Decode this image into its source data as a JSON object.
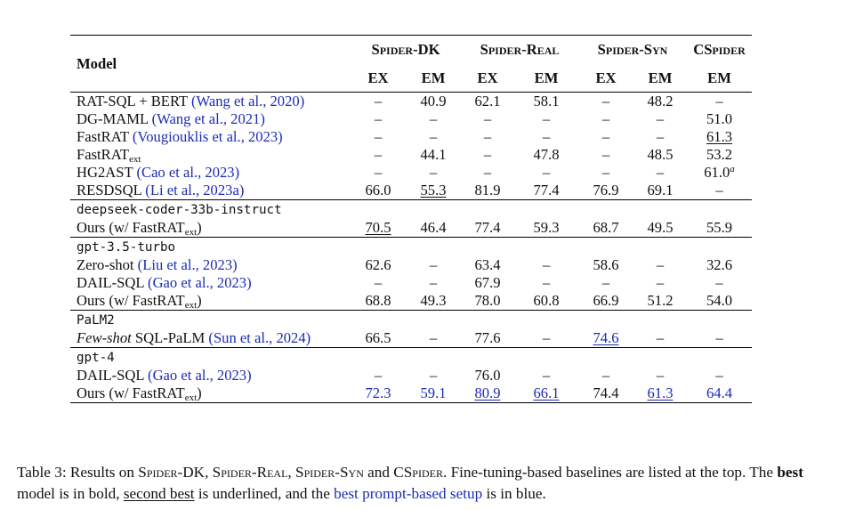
{
  "table": {
    "header_model": "Model",
    "groups": [
      "Spider-DK",
      "Spider-Real",
      "Spider-Syn",
      "CSpider"
    ],
    "metrics": [
      "EX",
      "EM",
      "EX",
      "EM",
      "EX",
      "EM",
      "EM"
    ],
    "sections": [
      {
        "label": "",
        "rows": [
          {
            "model": "RAT-SQL + BERT ",
            "cite": "(Wang et al., 2020)",
            "values": [
              "–",
              "40.9",
              "62.1",
              "58.1",
              "–",
              "48.2",
              "–"
            ]
          },
          {
            "model": "DG-MAML ",
            "cite": "(Wang et al., 2021)",
            "values": [
              "–",
              "–",
              "–",
              "–",
              "–",
              "–",
              "51.0"
            ]
          },
          {
            "model": "FastRAT ",
            "cite": "(Vougiouklis et al., 2023)",
            "values": [
              "–",
              "–",
              "–",
              "–",
              "–",
              "–",
              "61.3"
            ]
          },
          {
            "model": "FastRAT",
            "sub": "ext",
            "values": [
              "–",
              "44.1",
              "–",
              "47.8",
              "–",
              "48.5",
              "53.2"
            ]
          },
          {
            "model": "HG2AST ",
            "cite": "(Cao et al., 2023)",
            "values": [
              "–",
              "–",
              "–",
              "–",
              "–",
              "–",
              "61.0"
            ],
            "sup": "a"
          },
          {
            "model": "RESDSQL ",
            "cite": "(Li et al., 2023a)",
            "values": [
              "66.0",
              "55.3",
              "81.9",
              "77.4",
              "76.9",
              "69.1",
              "–"
            ]
          }
        ]
      },
      {
        "label": "deepseek-coder-33b-instruct",
        "rows": [
          {
            "model": "Ours (w/ FastRAT",
            "sub": "ext",
            "close": ")",
            "values": [
              "70.5",
              "46.4",
              "77.4",
              "59.3",
              "68.7",
              "49.5",
              "55.9"
            ]
          }
        ]
      },
      {
        "label": "gpt-3.5-turbo",
        "rows": [
          {
            "model": "Zero-shot ",
            "cite": "(Liu et al., 2023)",
            "values": [
              "62.6",
              "–",
              "63.4",
              "–",
              "58.6",
              "–",
              "32.6"
            ]
          },
          {
            "model": "DAIL-SQL ",
            "cite": "(Gao et al., 2023)",
            "values": [
              "–",
              "–",
              "67.9",
              "–",
              "–",
              "–",
              "–"
            ]
          },
          {
            "model": "Ours (w/ FastRAT",
            "sub": "ext",
            "close": ")",
            "values": [
              "68.8",
              "49.3",
              "78.0",
              "60.8",
              "66.9",
              "51.2",
              "54.0"
            ]
          }
        ]
      },
      {
        "label": "PaLM2",
        "rows": [
          {
            "model": "Few-shot",
            "model_rest": " SQL-PaLM ",
            "cite": "(Sun et al., 2024)",
            "values": [
              "66.5",
              "–",
              "77.6",
              "–",
              "74.6",
              "–",
              "–"
            ]
          }
        ]
      },
      {
        "label": "gpt-4",
        "rows": [
          {
            "model": "DAIL-SQL ",
            "cite": "(Gao et al., 2023)",
            "values": [
              "–",
              "–",
              "76.0",
              "–",
              "–",
              "–",
              "–"
            ]
          },
          {
            "model": "Ours (w/ FastRAT",
            "sub": "ext",
            "close": ")",
            "values": [
              "72.3",
              "59.1",
              "80.9",
              "66.1",
              "74.4",
              "61.3",
              "64.4"
            ]
          }
        ]
      }
    ]
  },
  "caption": {
    "prefix": "Table 3: Results on ",
    "d1": "Spider-DK",
    "s1": ", ",
    "d2": "Spider-Real",
    "s2": ", ",
    "d3": "Spider-Syn",
    "s3": " and ",
    "d4": "CSpider",
    "s4": ". Fine-tuning-based baselines are listed at the top. The ",
    "best": "best",
    "s5": " model is in bold, ",
    "second": "second best",
    "s6": " is underlined, and the ",
    "blue": "best prompt-based setup",
    "s7": " is in blue."
  },
  "colors": {
    "cite": "#1c2cb4",
    "highlight": "#1c2cb4",
    "text": "#111111"
  }
}
